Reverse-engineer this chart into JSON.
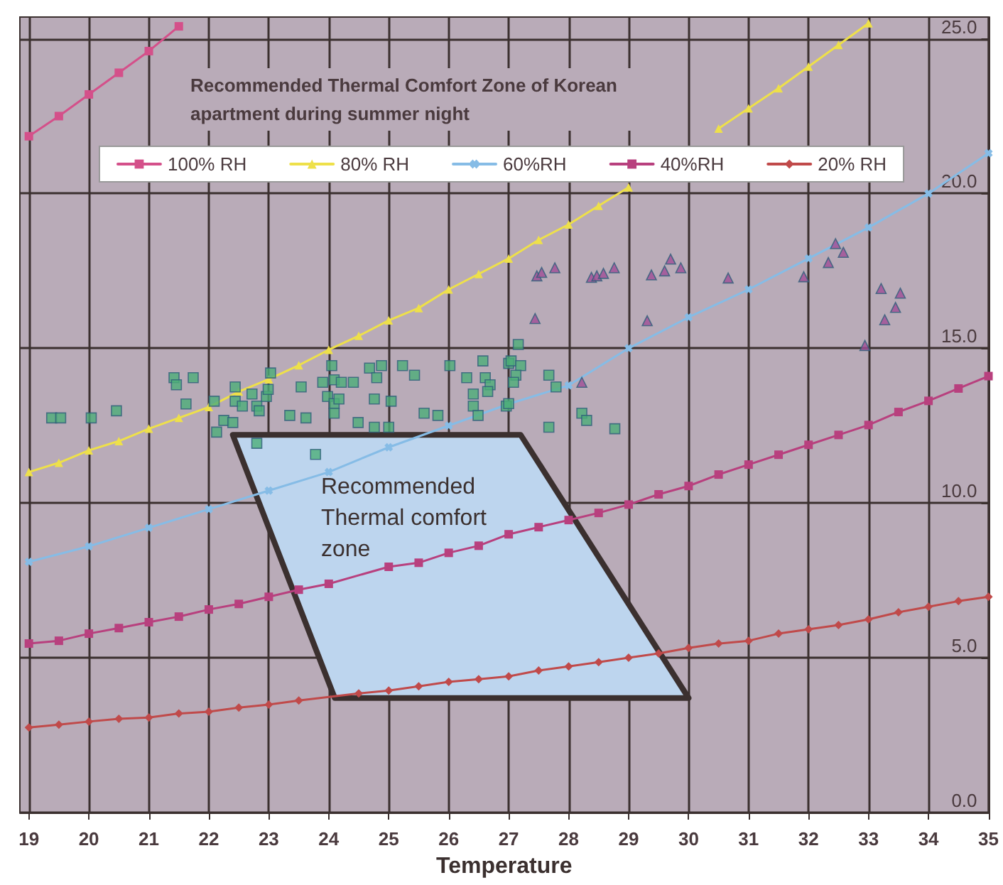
{
  "chart_data": {
    "type": "line",
    "title": "Recommended Thermal Comfort Zone of Korean apartment during summer night",
    "xlabel": "Temperature",
    "xlim": [
      18.85,
      35
    ],
    "xticks": [
      19,
      20,
      21,
      22,
      23,
      24,
      25,
      26,
      27,
      28,
      29,
      30,
      31,
      32,
      33,
      34,
      35
    ],
    "ylim": [
      0,
      25.7
    ],
    "yticks": [
      {
        "value": 0,
        "label": "0.0"
      },
      {
        "value": 5,
        "label": "5.0"
      },
      {
        "value": 10,
        "label": "10.0"
      },
      {
        "value": 15,
        "label": "15.0"
      },
      {
        "value": 20,
        "label": "20.0"
      },
      {
        "value": 25,
        "label": "25.0"
      }
    ],
    "grid": true,
    "legend": "top",
    "line_style": "solid",
    "annotations": [
      "Recommended Thermal comfort zone"
    ],
    "series": [
      {
        "type": "area",
        "color": "#bdd5ee",
        "x": [
          22.4,
          27.2,
          30.0,
          24.1,
          22.4
        ],
        "values": [
          12.2,
          12.2,
          3.7,
          3.7,
          12.2
        ]
      },
      {
        "name": "100% RH",
        "color": "#d4508a",
        "marker": "square",
        "x": [
          19,
          19.5,
          20,
          20.5,
          21,
          21.5
        ],
        "values": [
          21.85,
          22.5,
          23.2,
          23.9,
          24.6,
          25.4
        ]
      },
      {
        "name": "80% RH",
        "color": "#eee04a",
        "marker": "triangle",
        "x": [
          19,
          19.5,
          20,
          20.5,
          21,
          21.5,
          22,
          22.5,
          23,
          23.5,
          24,
          24.5,
          25,
          25.5,
          26,
          26.5,
          27,
          27.5,
          28,
          28.5,
          29,
          29.5,
          30,
          30.5,
          31,
          31.5,
          32,
          32.5,
          33
        ],
        "values": [
          11.0,
          11.3,
          11.7,
          12.0,
          12.4,
          12.75,
          13.1,
          13.6,
          14.0,
          14.45,
          14.95,
          15.4,
          15.9,
          16.3,
          16.9,
          17.4,
          17.9,
          18.5,
          19.0,
          19.6,
          20.2,
          null,
          null,
          22.1,
          22.75,
          23.4,
          24.1,
          24.8,
          25.5
        ]
      },
      {
        "name": "60%RH",
        "color": "#86bce6",
        "marker": "cross",
        "x": [
          19,
          20,
          21,
          22,
          23,
          24,
          25,
          26,
          27,
          28,
          29,
          30,
          31,
          32,
          33,
          34,
          35
        ],
        "values": [
          8.1,
          8.6,
          9.2,
          9.8,
          10.4,
          11.0,
          11.8,
          12.5,
          13.2,
          13.8,
          15.0,
          16.0,
          16.9,
          17.9,
          18.9,
          20.0,
          21.3
        ]
      },
      {
        "name": "40%RH",
        "color": "#b8407e",
        "marker": "square",
        "x": [
          19,
          19.5,
          20,
          20.5,
          21,
          21.5,
          22,
          22.5,
          23,
          23.5,
          24,
          25,
          25.5,
          26,
          26.5,
          27,
          27.5,
          28,
          28.5,
          29,
          29.5,
          30,
          30.5,
          31,
          31.5,
          32,
          32.5,
          33,
          33.5,
          34,
          34.5,
          35
        ],
        "values": [
          5.46,
          5.55,
          5.78,
          5.96,
          6.15,
          6.33,
          6.56,
          6.74,
          6.97,
          7.2,
          7.39,
          7.94,
          8.07,
          8.39,
          8.62,
          8.99,
          9.22,
          9.45,
          9.68,
          9.95,
          10.28,
          10.55,
          10.92,
          11.24,
          11.56,
          11.88,
          12.2,
          12.52,
          12.94,
          13.3,
          13.7,
          14.1
        ]
      },
      {
        "name": "20% RH",
        "color": "#c04a4a",
        "marker": "diamond",
        "x": [
          19,
          19.5,
          20,
          20.5,
          21,
          21.5,
          22,
          22.5,
          23,
          23.5,
          24.5,
          25,
          25.5,
          26,
          26.5,
          27,
          27.5,
          28,
          28.5,
          29,
          29.5,
          30,
          30.5,
          31,
          31.5,
          32,
          32.5,
          33,
          33.5,
          34,
          34.5,
          35
        ],
        "values": [
          2.75,
          2.84,
          2.94,
          3.03,
          3.07,
          3.2,
          3.26,
          3.39,
          3.49,
          3.62,
          3.85,
          3.94,
          4.08,
          4.22,
          4.31,
          4.4,
          4.59,
          4.72,
          4.86,
          5.0,
          5.14,
          5.32,
          5.46,
          5.55,
          5.78,
          5.92,
          6.06,
          6.24,
          6.47,
          6.65,
          6.83,
          6.97
        ]
      },
      {
        "type": "scatter",
        "color": "#4cae78",
        "marker": "square",
        "x": [
          19.38,
          19.53,
          20.04,
          20.46,
          21.42,
          21.74,
          21.46,
          21.62,
          22.09,
          22.13,
          22.25,
          22.44,
          22.44,
          22.4,
          22.56,
          22.72,
          22.8,
          22.96,
          23.03,
          22.99,
          22.84,
          23.54,
          23.35,
          23.62,
          24.05,
          23.9,
          24.09,
          24.21,
          24.41,
          23.98,
          24.09,
          24.17,
          24.09,
          24.68,
          24.88,
          24.8,
          25.23,
          25.43,
          24.76,
          25.04,
          24.49,
          25.59,
          25.82,
          26.02,
          26.3,
          26.57,
          26.61,
          26.69,
          26.65,
          26.41,
          26.41,
          26.49,
          26.96,
          27.0,
          24.76,
          25.0,
          27.16,
          27.04,
          27.2,
          27.12,
          27.08,
          27.67,
          27.79,
          27.0,
          28.22,
          28.3,
          27.67,
          28.77,
          22.8,
          23.78
        ],
        "values": [
          12.75,
          12.75,
          12.75,
          12.98,
          14.05,
          14.05,
          13.82,
          13.2,
          13.29,
          12.29,
          12.67,
          13.75,
          13.29,
          12.6,
          13.13,
          13.52,
          13.13,
          13.44,
          14.2,
          13.67,
          12.98,
          13.75,
          12.83,
          12.75,
          14.44,
          13.9,
          13.98,
          13.9,
          13.9,
          13.44,
          13.21,
          13.36,
          12.9,
          14.36,
          14.44,
          14.05,
          14.44,
          14.13,
          13.36,
          13.29,
          12.6,
          12.9,
          12.83,
          14.44,
          14.05,
          14.59,
          14.05,
          13.82,
          13.6,
          13.52,
          13.13,
          12.83,
          13.13,
          14.51,
          12.45,
          12.45,
          15.12,
          14.59,
          14.44,
          14.13,
          13.9,
          14.13,
          13.75,
          13.21,
          12.9,
          12.67,
          12.45,
          12.4,
          11.93,
          11.57
        ]
      },
      {
        "type": "scatter",
        "color": "#a04e96",
        "marker": "triangle",
        "x": [
          27.47,
          27.55,
          27.77,
          27.44,
          28.22,
          28.38,
          28.47,
          28.58,
          28.76,
          29.31,
          29.38,
          29.6,
          29.7,
          29.87,
          30.66,
          31.92,
          32.33,
          32.45,
          32.58,
          32.94,
          33.21,
          33.27,
          33.45,
          33.53
        ],
        "values": [
          17.34,
          17.45,
          17.6,
          15.96,
          13.9,
          17.29,
          17.34,
          17.42,
          17.6,
          15.89,
          17.37,
          17.5,
          17.88,
          17.6,
          17.27,
          17.31,
          17.77,
          18.38,
          18.1,
          15.09,
          16.93,
          15.92,
          16.32,
          16.78
        ]
      }
    ]
  }
}
